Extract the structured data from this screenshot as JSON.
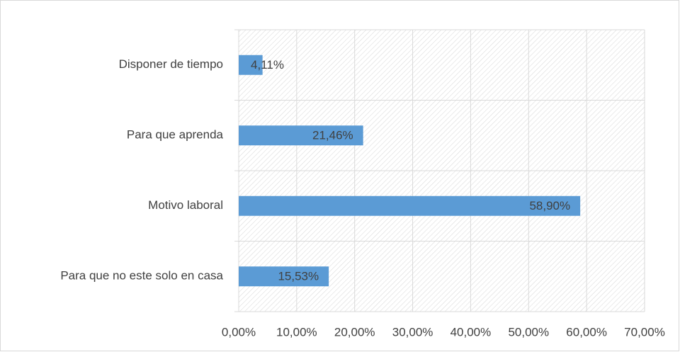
{
  "chart_data": {
    "type": "bar",
    "orientation": "horizontal",
    "categories": [
      "Disponer de tiempo",
      "Para que aprenda",
      "Motivo laboral",
      "Para que no este solo en casa"
    ],
    "values": [
      4.11,
      21.46,
      58.9,
      15.53
    ],
    "value_labels": [
      "4,11%",
      "21,46%",
      "58,90%",
      "15,53%"
    ],
    "color": "#5b9bd5",
    "xlim": [
      0,
      70
    ],
    "xticks": [
      {
        "value": 0,
        "label": "0,00%"
      },
      {
        "value": 10,
        "label": "10,00%"
      },
      {
        "value": 20,
        "label": "20,00%"
      },
      {
        "value": 30,
        "label": "30,00%"
      },
      {
        "value": 40,
        "label": "40,00%"
      },
      {
        "value": 50,
        "label": "50,00%"
      },
      {
        "value": 60,
        "label": "60,00%"
      },
      {
        "value": 70,
        "label": "70,00%"
      }
    ],
    "grid": true
  }
}
